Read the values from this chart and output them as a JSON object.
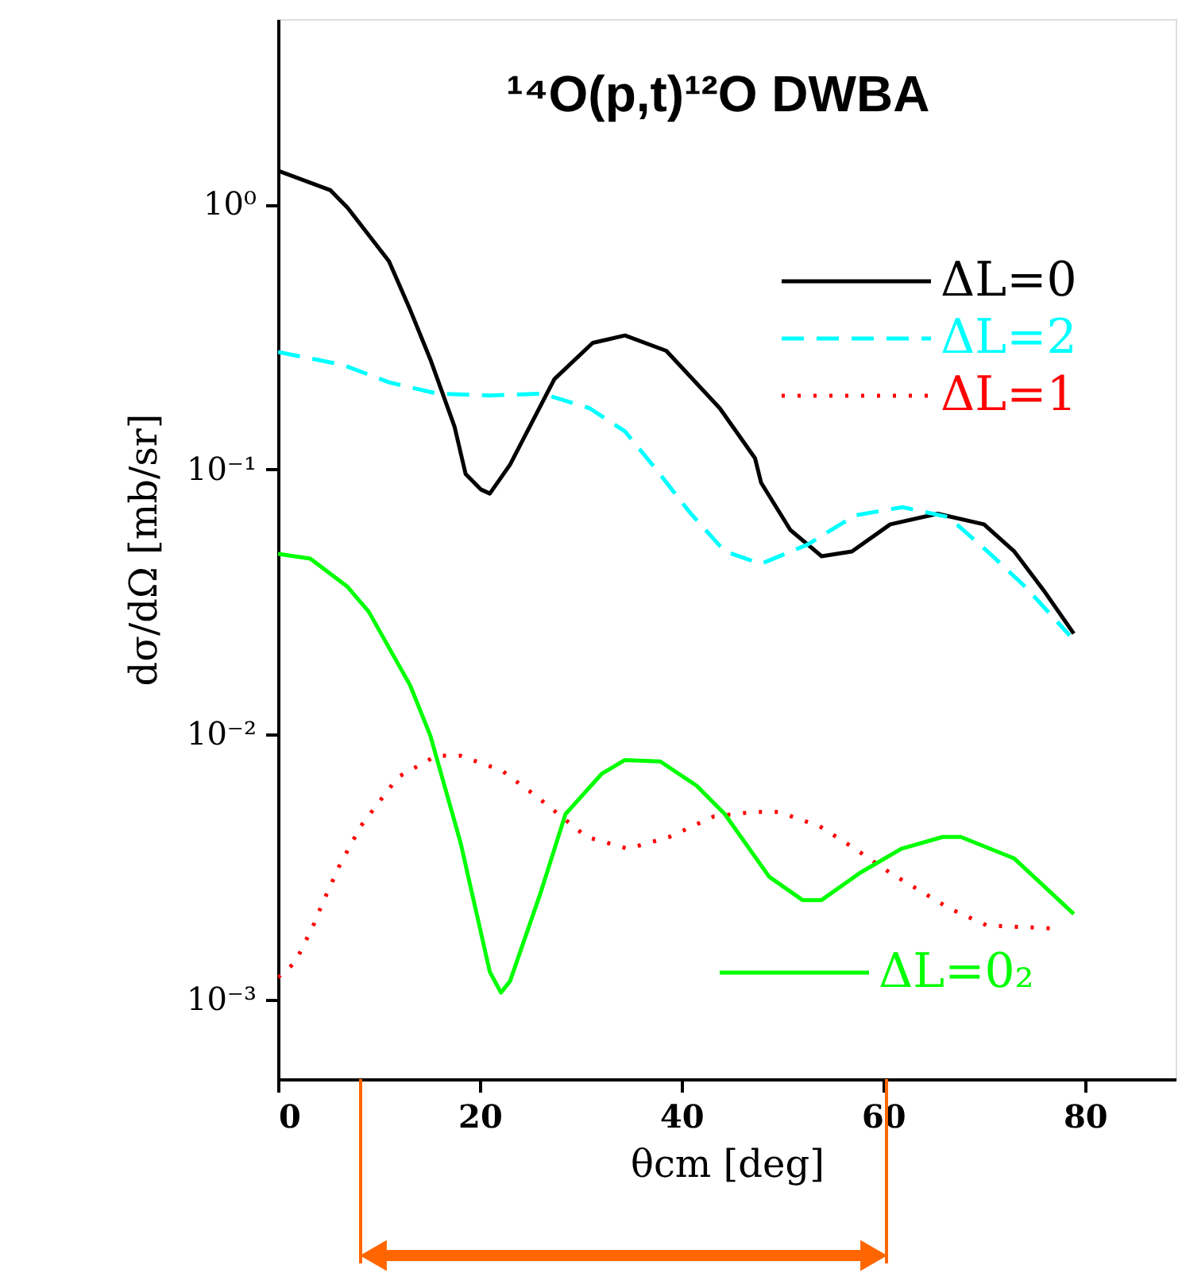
{
  "chart_data": {
    "type": "line",
    "title": "¹⁴O(p,t)¹²O DWBA",
    "xlabel": "θcm [deg]",
    "ylabel": "dσ/dΩ [mb/sr]",
    "log": "y",
    "xlim": [
      0,
      89
    ],
    "ylim": [
      0.0005,
      5
    ],
    "xticks": [
      0,
      20,
      40,
      60,
      80
    ],
    "yticks": [
      {
        "value": 0.001,
        "label": "10⁻³"
      },
      {
        "value": 0.01,
        "label": "10⁻²"
      },
      {
        "value": 0.1,
        "label": "10⁻¹"
      },
      {
        "value": 1,
        "label": "10⁰"
      }
    ],
    "legend": "right",
    "series": [
      {
        "name": "ΔL=0",
        "color": "#000000",
        "line_style": "solid",
        "x": [
          0,
          5.2,
          6.9,
          11,
          13.1,
          15.1,
          17.5,
          18.6,
          20.1,
          21,
          23,
          27.4,
          31.2,
          34.4,
          38.5,
          43.8,
          47.3,
          47.9,
          50.8,
          53.9,
          56.9,
          60.7,
          65.4,
          70,
          73,
          75.9,
          78.9
        ],
        "values": [
          1.34,
          1.13,
          0.97,
          0.61,
          0.4,
          0.26,
          0.145,
          0.096,
          0.084,
          0.081,
          0.104,
          0.219,
          0.3,
          0.32,
          0.28,
          0.17,
          0.11,
          0.089,
          0.059,
          0.047,
          0.049,
          0.062,
          0.068,
          0.062,
          0.049,
          0.035,
          0.024
        ]
      },
      {
        "name": "ΔL=2",
        "color": "#00ffff",
        "line_style": "dashed",
        "x": [
          0,
          6.4,
          11,
          15.8,
          21,
          26.2,
          30.9,
          34.4,
          37.4,
          40.8,
          44.3,
          47.9,
          52.5,
          57.2,
          61.9,
          66.5,
          70.6,
          74.1,
          78.5
        ],
        "values": [
          0.277,
          0.248,
          0.213,
          0.193,
          0.19,
          0.193,
          0.17,
          0.139,
          0.101,
          0.069,
          0.049,
          0.044,
          0.052,
          0.067,
          0.072,
          0.066,
          0.048,
          0.036,
          0.0236
        ]
      },
      {
        "name": "ΔL=1",
        "color": "#ff0000",
        "line_style": "dotted",
        "x": [
          0,
          1.7,
          3.5,
          4.4,
          6.1,
          8.2,
          11.9,
          15.7,
          18.1,
          22.2,
          25.7,
          30.6,
          34.7,
          38.8,
          43.2,
          47.3,
          49.6,
          53.7,
          57.2,
          60.7,
          66.6,
          70.3,
          77.1
        ],
        "values": [
          0.00121,
          0.00138,
          0.0019,
          0.0023,
          0.0032,
          0.0045,
          0.0069,
          0.0083,
          0.0083,
          0.0073,
          0.0058,
          0.0041,
          0.0037,
          0.0041,
          0.0049,
          0.0051,
          0.0051,
          0.0045,
          0.0037,
          0.003,
          0.0022,
          0.0019,
          0.00185
        ]
      },
      {
        "name": "ΔL=0₂",
        "color": "#00ff00",
        "line_style": "solid",
        "x": [
          0,
          3.2,
          6.9,
          9,
          13.1,
          15.1,
          18.1,
          21,
          22.1,
          23,
          26,
          28.5,
          32.1,
          34.4,
          37.9,
          41.5,
          44.3,
          48.7,
          52,
          53.9,
          57.7,
          61.8,
          65.9,
          67.7,
          73,
          78.9
        ],
        "values": [
          0.048,
          0.046,
          0.036,
          0.029,
          0.0153,
          0.0099,
          0.0039,
          0.00127,
          0.00106,
          0.00117,
          0.0025,
          0.005,
          0.0071,
          0.008,
          0.0079,
          0.0064,
          0.005,
          0.0029,
          0.00237,
          0.00237,
          0.003,
          0.0037,
          0.0041,
          0.0041,
          0.0034,
          0.0021
        ]
      }
    ]
  }
}
